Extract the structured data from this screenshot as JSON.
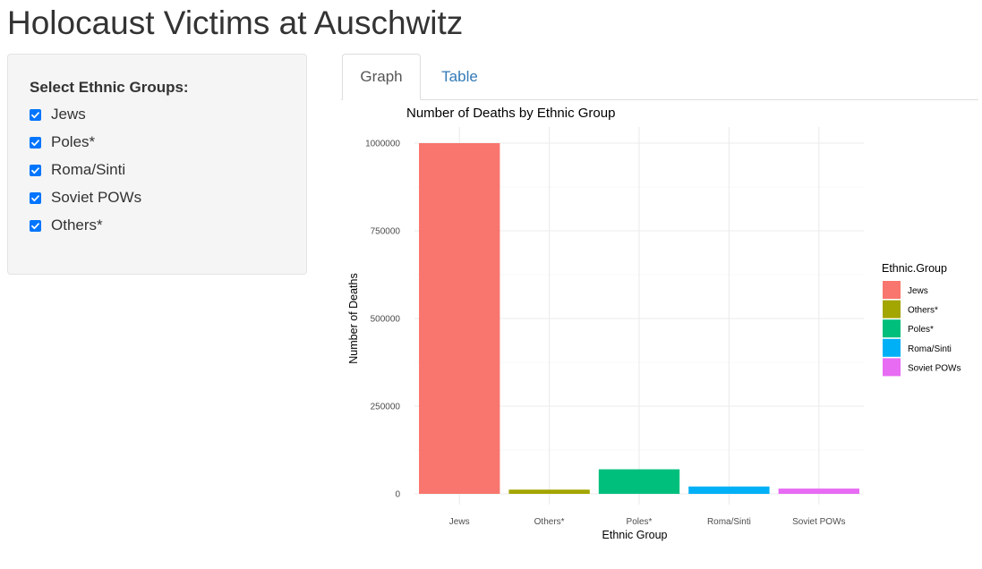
{
  "page": {
    "title": "Holocaust Victims at Auschwitz"
  },
  "sidebar": {
    "title": "Select Ethnic Groups:",
    "options": [
      {
        "label": "Jews",
        "checked": true
      },
      {
        "label": "Poles*",
        "checked": true
      },
      {
        "label": "Roma/Sinti",
        "checked": true
      },
      {
        "label": "Soviet POWs",
        "checked": true
      },
      {
        "label": "Others*",
        "checked": true
      }
    ],
    "checkbox_color": "#0075ff"
  },
  "tabs": [
    {
      "label": "Graph",
      "active": true
    },
    {
      "label": "Table",
      "active": false
    }
  ],
  "chart_data": {
    "type": "bar",
    "title": "Number of Deaths by Ethnic Group",
    "xlabel": "Ethnic Group",
    "ylabel": "Number of Deaths",
    "categories": [
      "Jews",
      "Others*",
      "Poles*",
      "Roma/Sinti",
      "Soviet POWs"
    ],
    "values": [
      1000000,
      12000,
      70000,
      21000,
      15000
    ],
    "colors": [
      "#f8766d",
      "#a3a500",
      "#00bf7d",
      "#00b0f6",
      "#e76bf3"
    ],
    "ylim": [
      0,
      1000000
    ],
    "yticks": [
      0,
      250000,
      500000,
      750000,
      1000000
    ],
    "ytick_labels": [
      "0",
      "250000",
      "500000",
      "750000",
      "1000000"
    ],
    "grid": true,
    "legend": {
      "title": "Ethnic.Group",
      "position": "right",
      "entries": [
        "Jews",
        "Others*",
        "Poles*",
        "Roma/Sinti",
        "Soviet POWs"
      ]
    }
  }
}
